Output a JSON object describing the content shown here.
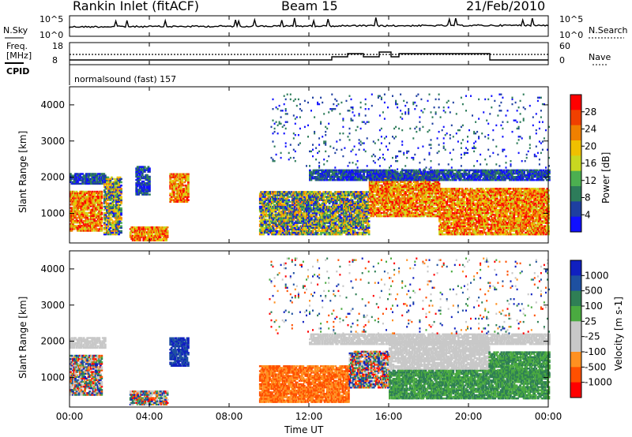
{
  "header": {
    "station": "Rankin Inlet (fitACF)",
    "beam": "Beam 15",
    "date": "21/Feb/2010"
  },
  "top_panel": {
    "nsky_label": "N.Sky",
    "nsky_ticks": [
      "10^5",
      "10^0"
    ],
    "nsearch_label": "N.Search",
    "nsearch_ticks": [
      "10^5",
      "10^0"
    ],
    "freq_label": "Freq.",
    "freq_unit": "[MHz]",
    "freq_ticks": [
      "18",
      "8"
    ],
    "nave_label": "Nave",
    "nave_ticks": [
      "60",
      "0"
    ],
    "cpid_label": "CPID",
    "cpid_value": "normalsound (fast) 157"
  },
  "colors": {
    "power_scale": [
      "#1010ff",
      "#1e3fa0",
      "#2d7c5a",
      "#4caf50",
      "#c8d820",
      "#f0c000",
      "#f08000",
      "#f04000",
      "#ff0000"
    ],
    "velocity_scale": [
      "#ff0000",
      "#ff5000",
      "#ff9020",
      "#c8c8c8",
      "#c8c8c8",
      "#4aaa40",
      "#2f7f55",
      "#1e50a0",
      "#1020c0"
    ]
  },
  "chart_data": [
    {
      "type": "heatmap",
      "title": "",
      "xlabel": "Time UT",
      "ylabel": "Slant Range [km]",
      "xlim": [
        "00:00",
        "24:00"
      ],
      "ylim": [
        180,
        4500
      ],
      "x_ticks": [
        "00:00",
        "04:00",
        "08:00",
        "12:00",
        "16:00",
        "20:00",
        "00:00"
      ],
      "y_ticks": [
        "1000",
        "2000",
        "3000",
        "4000"
      ],
      "colorbar_label": "Power [dB]",
      "colorbar_ticks": [
        "4",
        "8",
        "12",
        "16",
        "20",
        "24",
        "28"
      ],
      "colorbar_range": [
        0,
        30
      ],
      "regions": [
        {
          "t0": 0.0,
          "t1": 1.6,
          "r0": 500,
          "r1": 1600,
          "level": "high"
        },
        {
          "t0": 0.0,
          "t1": 1.8,
          "r0": 1800,
          "r1": 2100,
          "level": "low"
        },
        {
          "t0": 1.7,
          "t1": 2.6,
          "r0": 400,
          "r1": 2000,
          "level": "mid"
        },
        {
          "t0": 3.3,
          "t1": 4.0,
          "r0": 1500,
          "r1": 2300,
          "level": "low"
        },
        {
          "t0": 5.0,
          "t1": 5.9,
          "r0": 1300,
          "r1": 2100,
          "level": "high"
        },
        {
          "t0": 3.0,
          "t1": 4.9,
          "r0": 230,
          "r1": 600,
          "level": "high"
        },
        {
          "t0": 9.5,
          "t1": 15.0,
          "r0": 400,
          "r1": 1600,
          "level": "mid"
        },
        {
          "t0": 15.0,
          "t1": 18.5,
          "r0": 900,
          "r1": 2100,
          "level": "high"
        },
        {
          "t0": 18.5,
          "t1": 24.0,
          "r0": 400,
          "r1": 1700,
          "level": "high"
        },
        {
          "t0": 12.0,
          "t1": 24.0,
          "r0": 1900,
          "r1": 2200,
          "level": "low"
        },
        {
          "t0": 10.0,
          "t1": 24.0,
          "r0": 2200,
          "r1": 4300,
          "level": "sparse"
        }
      ]
    },
    {
      "type": "heatmap",
      "title": "",
      "xlabel": "Time UT",
      "ylabel": "Slant Range [km]",
      "xlim": [
        "00:00",
        "24:00"
      ],
      "ylim": [
        180,
        4500
      ],
      "x_ticks": [
        "00:00",
        "04:00",
        "08:00",
        "12:00",
        "16:00",
        "20:00",
        "00:00"
      ],
      "y_ticks": [
        "1000",
        "2000",
        "3000",
        "4000"
      ],
      "colorbar_label": "Velocity [m s-1]",
      "colorbar_ticks": [
        "1000",
        "500",
        "100",
        "25",
        "-25",
        "-100",
        "-500",
        "-1000"
      ],
      "colorbar_range": [
        -1000,
        1000
      ],
      "regions": [
        {
          "t0": 0.0,
          "t1": 1.6,
          "r0": 500,
          "r1": 1600,
          "level": "mixed"
        },
        {
          "t0": 0.0,
          "t1": 1.8,
          "r0": 1800,
          "r1": 2100,
          "level": "grey"
        },
        {
          "t0": 5.0,
          "t1": 5.9,
          "r0": 1300,
          "r1": 2100,
          "level": "blue"
        },
        {
          "t0": 3.0,
          "t1": 4.9,
          "r0": 230,
          "r1": 600,
          "level": "mixed"
        },
        {
          "t0": 9.5,
          "t1": 14.0,
          "r0": 300,
          "r1": 1300,
          "level": "orange"
        },
        {
          "t0": 14.0,
          "t1": 16.0,
          "r0": 700,
          "r1": 1700,
          "level": "mixed"
        },
        {
          "t0": 16.0,
          "t1": 21.0,
          "r0": 1200,
          "r1": 2000,
          "level": "grey"
        },
        {
          "t0": 16.0,
          "t1": 24.0,
          "r0": 400,
          "r1": 1200,
          "level": "green"
        },
        {
          "t0": 21.0,
          "t1": 24.0,
          "r0": 1000,
          "r1": 1700,
          "level": "green"
        },
        {
          "t0": 12.0,
          "t1": 24.0,
          "r0": 1900,
          "r1": 2200,
          "level": "grey"
        },
        {
          "t0": 10.0,
          "t1": 24.0,
          "r0": 2200,
          "r1": 4300,
          "level": "sparse"
        }
      ]
    }
  ]
}
